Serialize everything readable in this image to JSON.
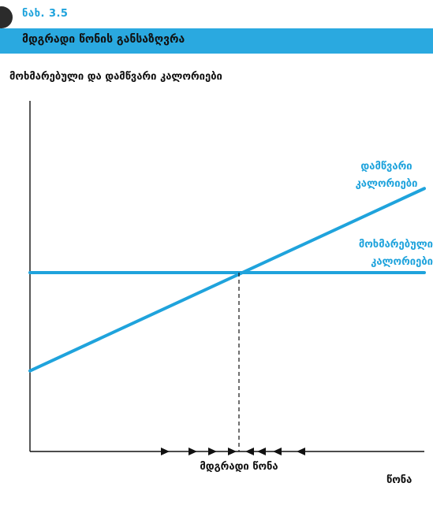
{
  "figure": {
    "label": "ნახ. 3.5",
    "title": "მდგრადი წონის განსაზღვრა"
  },
  "chart_data": {
    "type": "line",
    "ylabel": "მოხმარებული და დამწვარი კალორიები",
    "xlabel": "წონა",
    "xlim": [
      0,
      100
    ],
    "ylim": [
      0,
      100
    ],
    "series": [
      {
        "name": "დამწვარი კალორიები",
        "x": [
          0,
          100
        ],
        "y": [
          23,
          75
        ]
      },
      {
        "name": "მოხმარებული კალორიები",
        "x": [
          0,
          100
        ],
        "y": [
          51,
          51
        ]
      }
    ],
    "equilibrium": {
      "x": 53,
      "y": 51,
      "label": "მდგრადი წონა"
    },
    "arrows_right_x": [
      35,
      42,
      47,
      52
    ],
    "arrows_left_x": [
      55,
      58,
      62,
      68
    ],
    "grid": false,
    "colors": {
      "series": "#1fa3dc",
      "axis": "#111111"
    }
  }
}
